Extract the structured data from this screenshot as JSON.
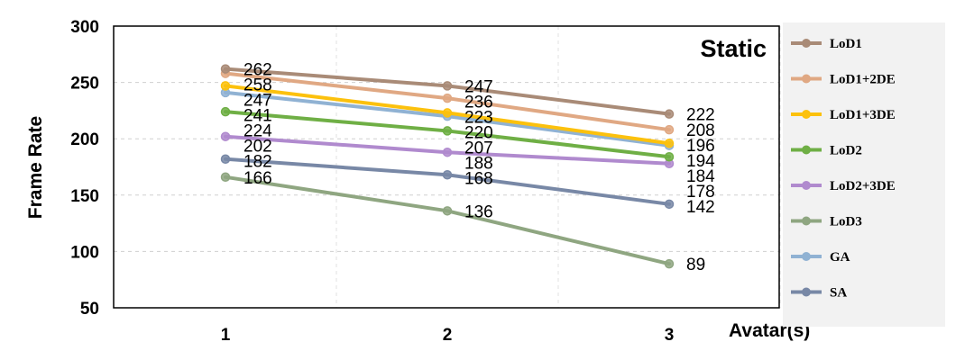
{
  "chart_data": {
    "type": "line",
    "title": "",
    "annotation": "Static",
    "xlabel": "Avatar(s)",
    "ylabel": "Frame Rate",
    "x": [
      1,
      2,
      3
    ],
    "x_tick_labels": [
      "1",
      "2",
      "3"
    ],
    "ylim": [
      50,
      300
    ],
    "y_ticks": [
      50,
      100,
      150,
      200,
      250,
      300
    ],
    "y_tick_labels": [
      "50",
      "100",
      "150",
      "200",
      "250",
      "300"
    ],
    "grid": "dashed",
    "legend_position": "right",
    "series": [
      {
        "name": "LoD1",
        "color": "#a98b77",
        "values": [
          262,
          247,
          222
        ]
      },
      {
        "name": "LoD1+2DE",
        "color": "#e0a883",
        "values": [
          258,
          236,
          208
        ]
      },
      {
        "name": "LoD1+3DE",
        "color": "#fcc10d",
        "values": [
          247,
          223,
          196
        ]
      },
      {
        "name": "LoD2",
        "color": "#6faf45",
        "values": [
          224,
          207,
          184
        ]
      },
      {
        "name": "LoD2+3DE",
        "color": "#b08ace",
        "values": [
          202,
          188,
          178
        ]
      },
      {
        "name": "LoD3",
        "color": "#8fa681",
        "values": [
          166,
          136,
          89
        ]
      },
      {
        "name": "GA",
        "color": "#90b2d3",
        "values": [
          241,
          220,
          194
        ]
      },
      {
        "name": "SA",
        "color": "#7888a6",
        "values": [
          182,
          168,
          142
        ]
      }
    ]
  }
}
